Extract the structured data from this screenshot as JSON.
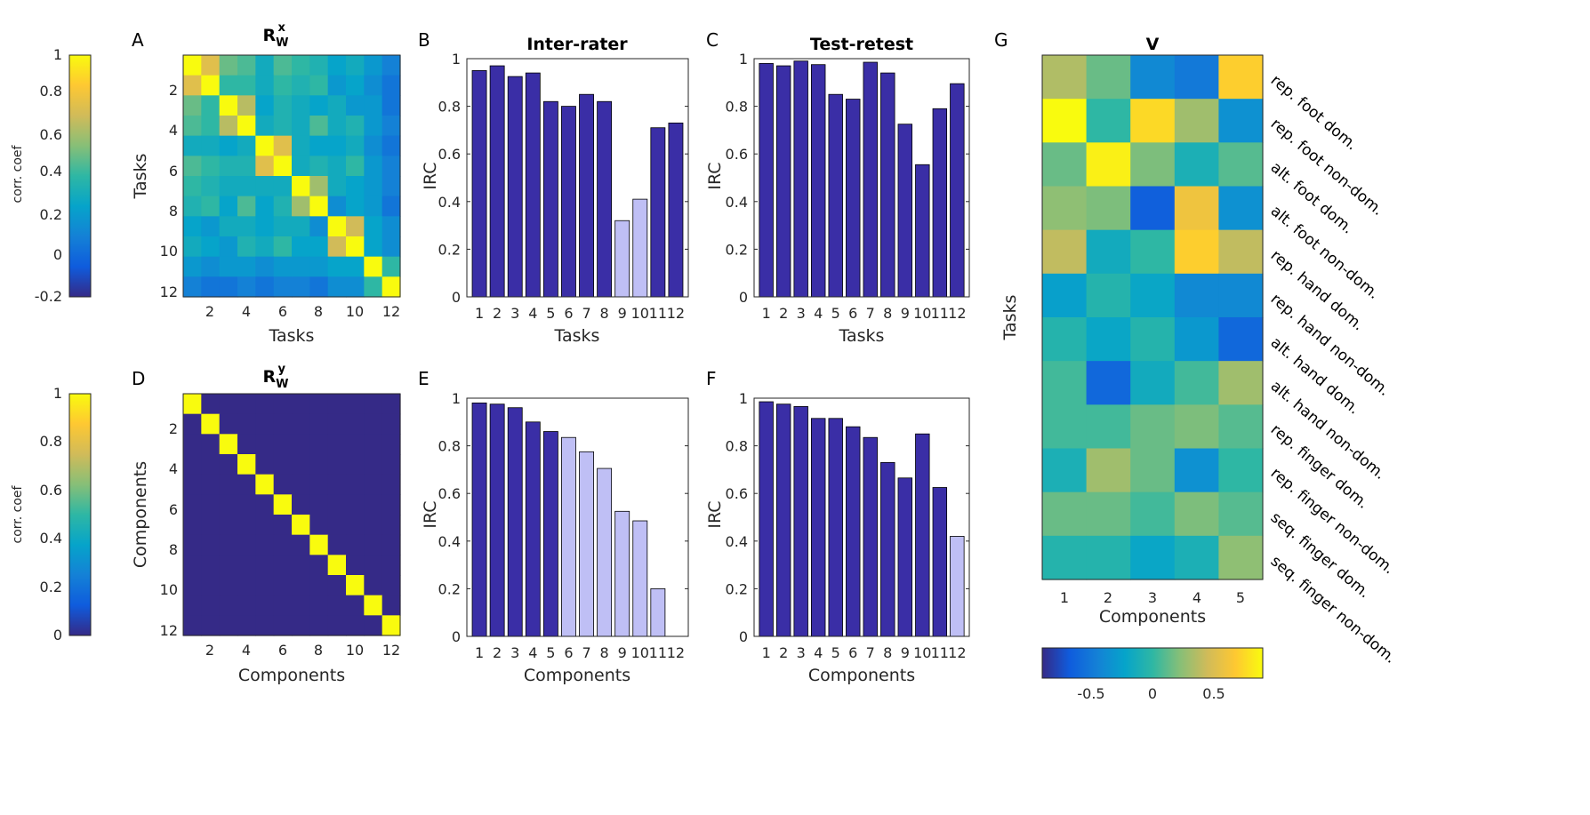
{
  "colors": {
    "bar_dark": "#3a2ea6",
    "bar_light": "#bfbff5",
    "parula": [
      "#352a87",
      "#0f5cdd",
      "#1481d6",
      "#06a4ca",
      "#2eb7a4",
      "#87bf77",
      "#d1bb59",
      "#fec832",
      "#f9fb0e"
    ]
  },
  "colorbars": {
    "label": "corr. coef",
    "top": {
      "ticks": [
        "1",
        "0.8",
        "0.6",
        "0.4",
        "0.2",
        "0",
        "-0.2"
      ]
    },
    "bottom": {
      "ticks": [
        "1",
        "0.8",
        "0.6",
        "0.4",
        "0.2",
        "0"
      ]
    },
    "v": {
      "ticks": [
        "-0.5",
        "0",
        "0.5"
      ]
    }
  },
  "chart_data": [
    {
      "id": "A",
      "letter": "A",
      "type": "heatmap",
      "title_main": "R",
      "title_sub": "W",
      "title_sup": "x",
      "xlabel": "Tasks",
      "ylabel": "Tasks",
      "xticks": [
        "2",
        "4",
        "6",
        "8",
        "10",
        "12"
      ],
      "yticks": [
        "2",
        "4",
        "6",
        "8",
        "10",
        "12"
      ],
      "clim": [
        -0.2,
        1
      ],
      "matrix": [
        [
          1.0,
          0.75,
          0.5,
          0.45,
          0.3,
          0.45,
          0.4,
          0.35,
          0.25,
          0.3,
          0.2,
          0.1
        ],
        [
          0.75,
          1.0,
          0.4,
          0.4,
          0.3,
          0.4,
          0.35,
          0.4,
          0.2,
          0.25,
          0.15,
          0.05
        ],
        [
          0.5,
          0.4,
          1.0,
          0.65,
          0.25,
          0.35,
          0.3,
          0.25,
          0.3,
          0.2,
          0.2,
          0.05
        ],
        [
          0.45,
          0.4,
          0.65,
          1.0,
          0.3,
          0.35,
          0.3,
          0.45,
          0.3,
          0.35,
          0.2,
          0.1
        ],
        [
          0.3,
          0.3,
          0.25,
          0.3,
          1.0,
          0.75,
          0.3,
          0.25,
          0.25,
          0.3,
          0.15,
          0.05
        ],
        [
          0.45,
          0.4,
          0.35,
          0.35,
          0.75,
          1.0,
          0.3,
          0.35,
          0.3,
          0.4,
          0.2,
          0.1
        ],
        [
          0.4,
          0.35,
          0.3,
          0.3,
          0.3,
          0.3,
          1.0,
          0.6,
          0.3,
          0.25,
          0.2,
          0.1
        ],
        [
          0.35,
          0.4,
          0.25,
          0.45,
          0.25,
          0.35,
          0.6,
          1.0,
          0.15,
          0.25,
          0.2,
          0.05
        ],
        [
          0.25,
          0.2,
          0.3,
          0.3,
          0.25,
          0.3,
          0.3,
          0.15,
          1.0,
          0.7,
          0.25,
          0.15
        ],
        [
          0.3,
          0.25,
          0.2,
          0.35,
          0.3,
          0.4,
          0.25,
          0.25,
          0.7,
          1.0,
          0.25,
          0.15
        ],
        [
          0.2,
          0.15,
          0.2,
          0.2,
          0.15,
          0.2,
          0.2,
          0.2,
          0.25,
          0.25,
          1.0,
          0.4
        ],
        [
          0.1,
          0.05,
          0.05,
          0.1,
          0.05,
          0.1,
          0.1,
          0.05,
          0.15,
          0.15,
          0.4,
          1.0
        ]
      ]
    },
    {
      "id": "B",
      "letter": "B",
      "type": "bar",
      "title": "Inter-rater",
      "xlabel": "Tasks",
      "ylabel": "IRC",
      "ylim": [
        0,
        1
      ],
      "categories": [
        "1",
        "2",
        "3",
        "4",
        "5",
        "6",
        "7",
        "8",
        "9",
        "10",
        "11",
        "12"
      ],
      "yticks": [
        "0",
        "0.2",
        "0.4",
        "0.6",
        "0.8",
        "1"
      ],
      "values": [
        0.95,
        0.97,
        0.925,
        0.94,
        0.82,
        0.8,
        0.85,
        0.82,
        0.32,
        0.41,
        0.71,
        0.73
      ],
      "light": [
        false,
        false,
        false,
        false,
        false,
        false,
        false,
        false,
        true,
        true,
        false,
        false
      ]
    },
    {
      "id": "C",
      "letter": "C",
      "type": "bar",
      "title": "Test-retest",
      "xlabel": "Tasks",
      "ylabel": "IRC",
      "ylim": [
        0,
        1
      ],
      "categories": [
        "1",
        "2",
        "3",
        "4",
        "5",
        "6",
        "7",
        "8",
        "9",
        "10",
        "11",
        "12"
      ],
      "yticks": [
        "0",
        "0.2",
        "0.4",
        "0.6",
        "0.8",
        "1"
      ],
      "values": [
        0.98,
        0.97,
        0.99,
        0.975,
        0.85,
        0.83,
        0.985,
        0.94,
        0.725,
        0.555,
        0.79,
        0.895
      ],
      "light": [
        false,
        false,
        false,
        false,
        false,
        false,
        false,
        false,
        false,
        false,
        false,
        false
      ]
    },
    {
      "id": "D",
      "letter": "D",
      "type": "heatmap",
      "title_main": "R",
      "title_sub": "W",
      "title_sup": "y",
      "xlabel": "Components",
      "ylabel": "Components",
      "xticks": [
        "2",
        "4",
        "6",
        "8",
        "10",
        "12"
      ],
      "yticks": [
        "2",
        "4",
        "6",
        "8",
        "10",
        "12"
      ],
      "clim": [
        0,
        1
      ],
      "identity_size": 12
    },
    {
      "id": "E",
      "letter": "E",
      "type": "bar",
      "title": "",
      "xlabel": "Components",
      "ylabel": "IRC",
      "ylim": [
        0,
        1
      ],
      "categories": [
        "1",
        "2",
        "3",
        "4",
        "5",
        "6",
        "7",
        "8",
        "9",
        "10",
        "11",
        "12"
      ],
      "yticks": [
        "0",
        "0.2",
        "0.4",
        "0.6",
        "0.8",
        "1"
      ],
      "values": [
        0.98,
        0.975,
        0.96,
        0.9,
        0.86,
        0.835,
        0.775,
        0.705,
        0.525,
        0.485,
        0.2,
        0
      ],
      "light": [
        false,
        false,
        false,
        false,
        false,
        true,
        true,
        true,
        true,
        true,
        true,
        true
      ]
    },
    {
      "id": "F",
      "letter": "F",
      "type": "bar",
      "title": "",
      "xlabel": "Components",
      "ylabel": "IRC",
      "ylim": [
        0,
        1
      ],
      "categories": [
        "1",
        "2",
        "3",
        "4",
        "5",
        "6",
        "7",
        "8",
        "9",
        "10",
        "11",
        "12"
      ],
      "yticks": [
        "0",
        "0.2",
        "0.4",
        "0.6",
        "0.8",
        "1"
      ],
      "values": [
        0.985,
        0.975,
        0.965,
        0.915,
        0.915,
        0.88,
        0.835,
        0.73,
        0.665,
        0.85,
        0.625,
        0.42
      ],
      "light": [
        false,
        false,
        false,
        false,
        false,
        false,
        false,
        false,
        false,
        false,
        false,
        true
      ]
    },
    {
      "id": "G",
      "letter": "G",
      "type": "heatmap",
      "title": "V",
      "xlabel": "Components",
      "ylabel": "Tasks",
      "xticks": [
        "1",
        "2",
        "3",
        "4",
        "5"
      ],
      "clim": [
        -0.9,
        0.9
      ],
      "row_labels": [
        "rep. foot dom.",
        "rep. foot non-dom.",
        "alt. foot dom.",
        "alt. foot non-dom.",
        "rep. hand dom.",
        "rep. hand non-dom.",
        "alt. hand dom.",
        "alt. hand non-dom.",
        "rep. finger dom.",
        "rep. finger non-dom.",
        "seq. finger dom.",
        "seq. finger non-dom."
      ],
      "matrix": [
        [
          0.35,
          0.15,
          -0.4,
          -0.5,
          0.7
        ],
        [
          0.9,
          0.0,
          0.75,
          0.3,
          -0.35
        ],
        [
          0.15,
          0.85,
          0.2,
          -0.1,
          0.1
        ],
        [
          0.25,
          0.2,
          -0.65,
          0.6,
          -0.35
        ],
        [
          0.4,
          -0.15,
          0.0,
          0.7,
          0.4
        ],
        [
          -0.25,
          -0.05,
          -0.2,
          -0.4,
          -0.4
        ],
        [
          -0.05,
          -0.2,
          -0.05,
          -0.3,
          -0.6
        ],
        [
          0.05,
          -0.6,
          -0.15,
          0.05,
          0.3
        ],
        [
          0.05,
          0.05,
          0.15,
          0.2,
          0.1
        ],
        [
          -0.1,
          0.3,
          0.15,
          -0.35,
          0.0
        ],
        [
          0.15,
          0.15,
          0.05,
          0.2,
          0.1
        ],
        [
          -0.05,
          -0.05,
          -0.2,
          -0.1,
          0.25
        ]
      ]
    }
  ]
}
